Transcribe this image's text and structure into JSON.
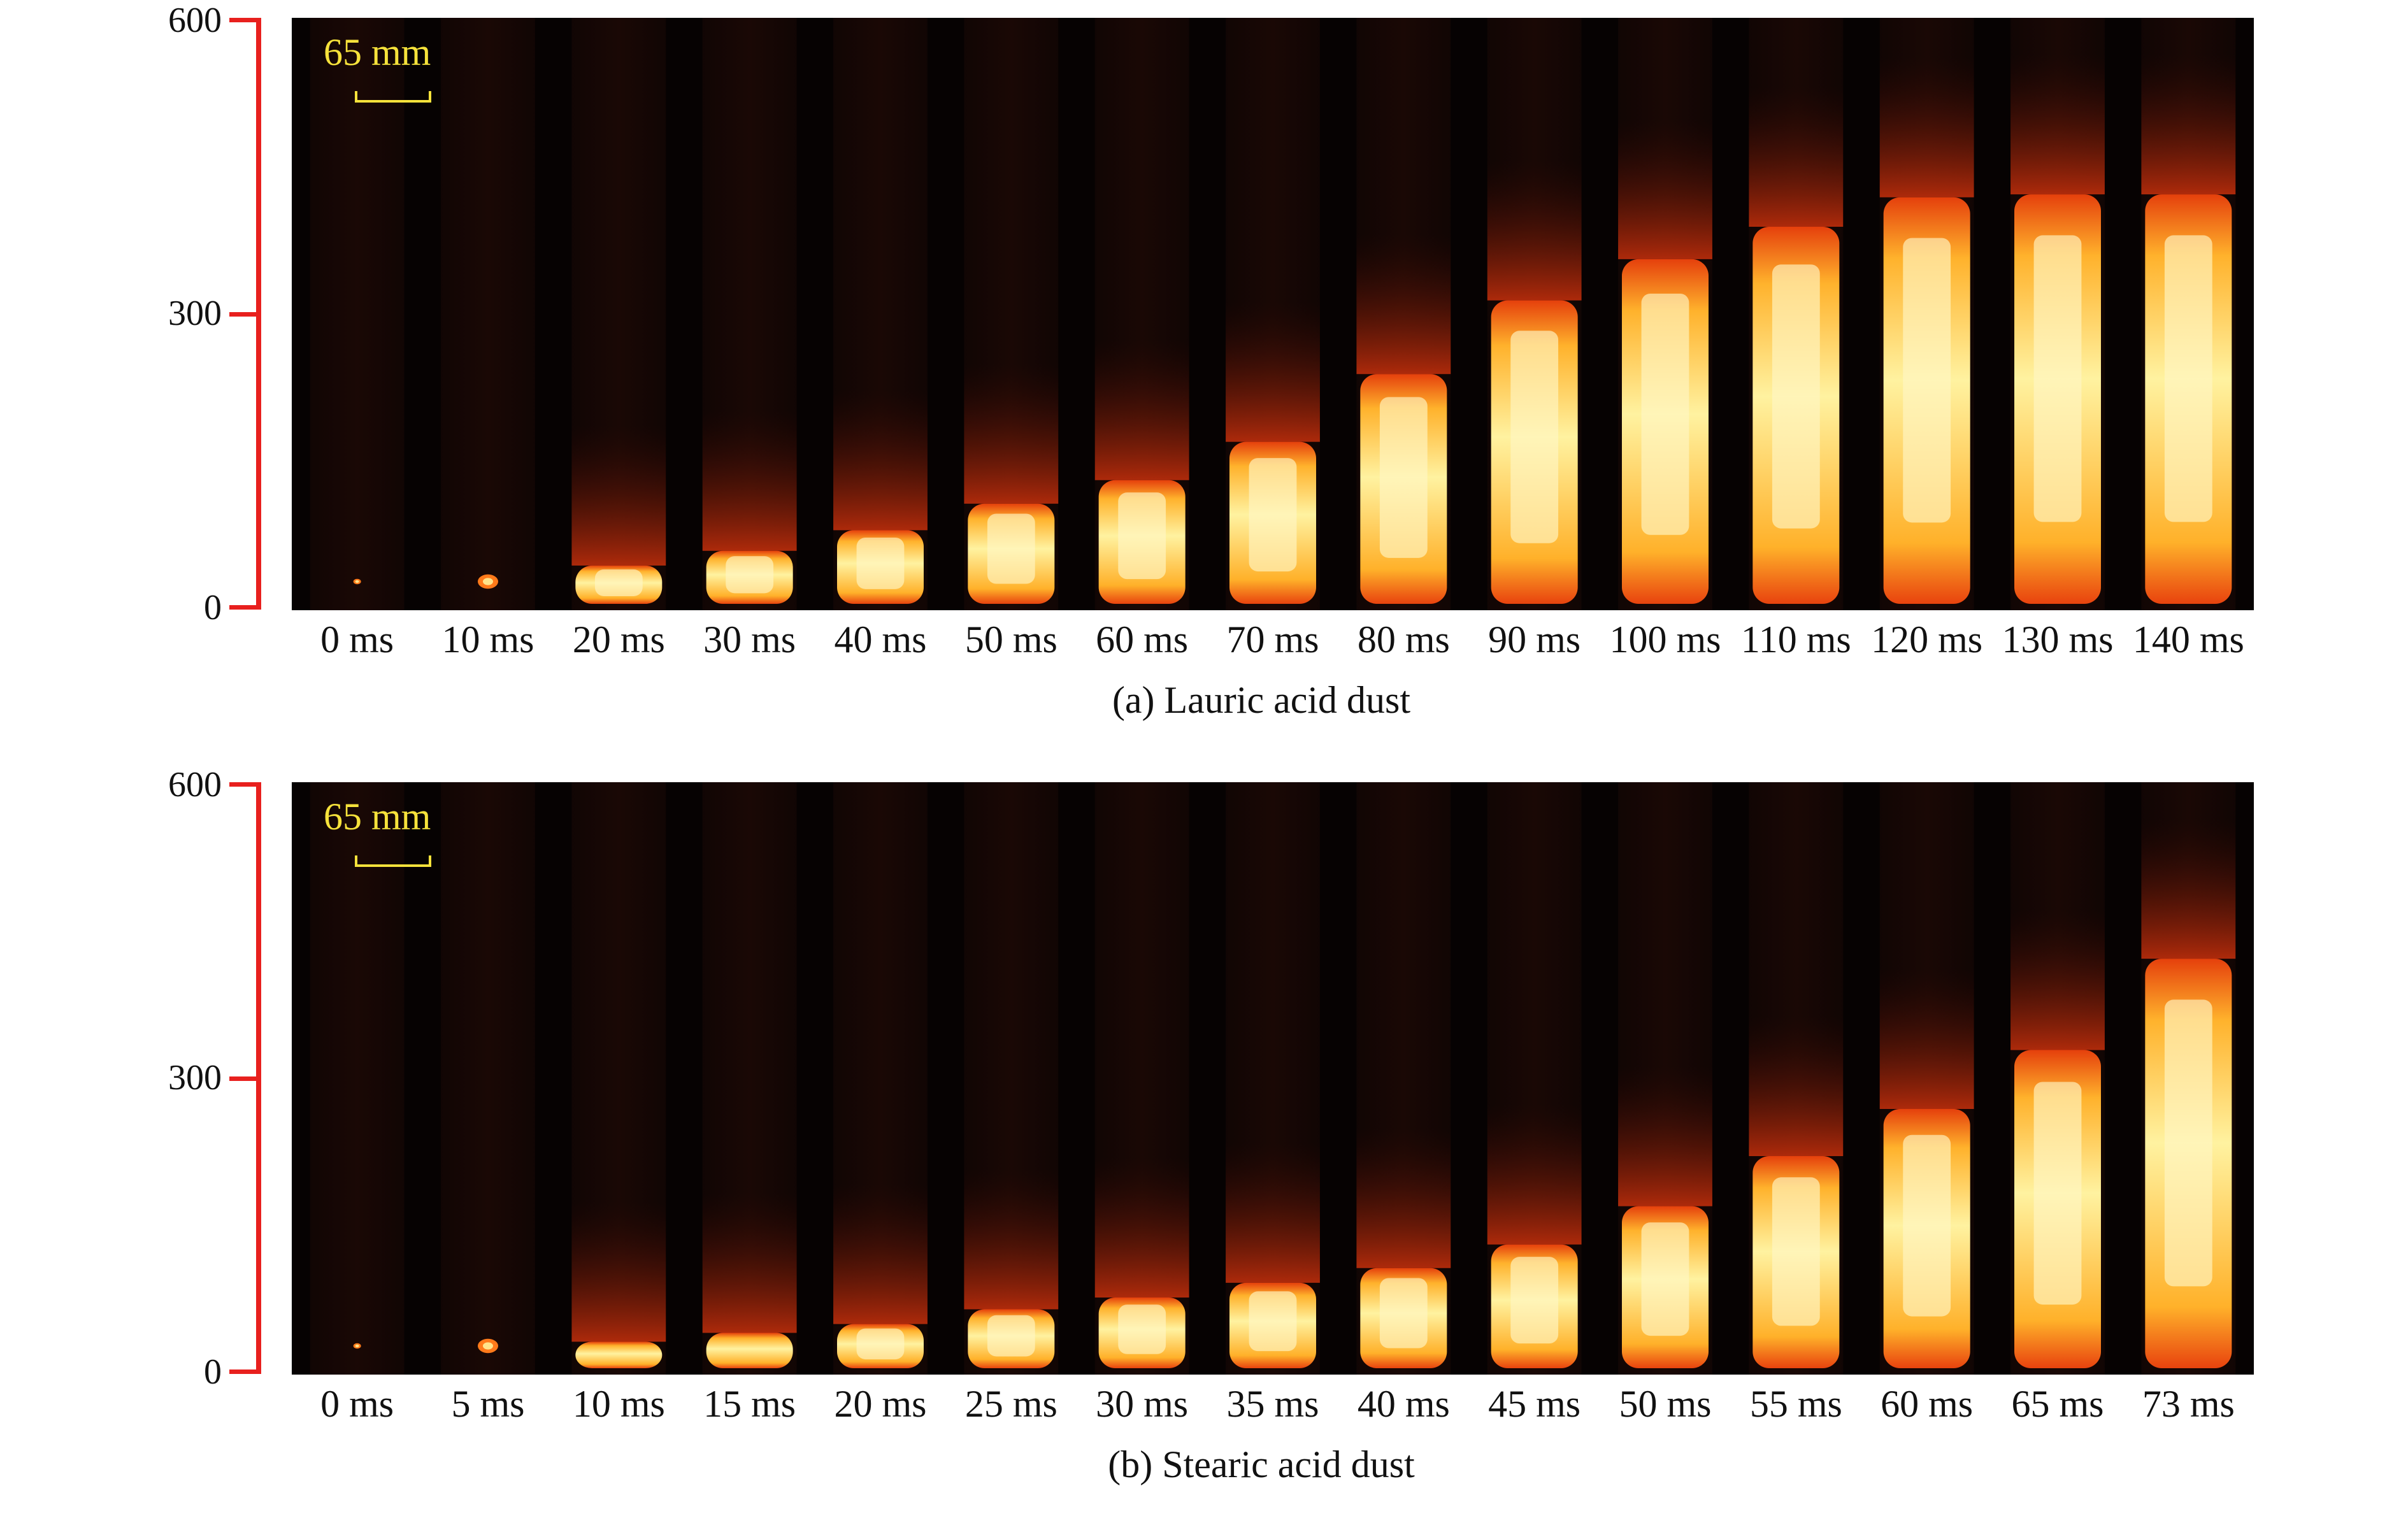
{
  "colors": {
    "axis": "#e8201e",
    "scale_text": "#f6e23b",
    "background": "#ffffff",
    "photo_bg": "#060202"
  },
  "panels": [
    {
      "caption": "(a) Lauric acid dust",
      "scale_label": "65 mm",
      "y_ticks": [
        "600",
        "300",
        "0"
      ],
      "frames": [
        {
          "label": "0 ms",
          "flame_top": 0.05,
          "spark": true
        },
        {
          "label": "10 ms",
          "flame_top": 0.09,
          "spark": true
        },
        {
          "label": "20 ms",
          "flame_top": 0.13
        },
        {
          "label": "30 ms",
          "flame_top": 0.18
        },
        {
          "label": "40 ms",
          "flame_top": 0.25
        },
        {
          "label": "50 ms",
          "flame_top": 0.34
        },
        {
          "label": "60 ms",
          "flame_top": 0.42
        },
        {
          "label": "70 ms",
          "flame_top": 0.55
        },
        {
          "label": "80 ms",
          "flame_top": 0.78
        },
        {
          "label": "90 ms",
          "flame_top": 1.03
        },
        {
          "label": "100 ms",
          "flame_top": 1.17
        },
        {
          "label": "110 ms",
          "flame_top": 1.28
        },
        {
          "label": "120 ms",
          "flame_top": 1.38
        },
        {
          "label": "130 ms",
          "flame_top": 1.39
        },
        {
          "label": "140 ms",
          "flame_top": 1.39
        }
      ]
    },
    {
      "caption": "(b) Stearic acid dust",
      "scale_label": "65 mm",
      "y_ticks": [
        "600",
        "300",
        "0"
      ],
      "frames": [
        {
          "label": "0 ms",
          "flame_top": 0.04,
          "spark": true
        },
        {
          "label": "5 ms",
          "flame_top": 0.07,
          "spark": true
        },
        {
          "label": "10 ms",
          "flame_top": 0.09
        },
        {
          "label": "15 ms",
          "flame_top": 0.12
        },
        {
          "label": "20 ms",
          "flame_top": 0.15
        },
        {
          "label": "25 ms",
          "flame_top": 0.2
        },
        {
          "label": "30 ms",
          "flame_top": 0.24
        },
        {
          "label": "35 ms",
          "flame_top": 0.29
        },
        {
          "label": "40 ms",
          "flame_top": 0.34
        },
        {
          "label": "45 ms",
          "flame_top": 0.42
        },
        {
          "label": "50 ms",
          "flame_top": 0.55
        },
        {
          "label": "55 ms",
          "flame_top": 0.72
        },
        {
          "label": "60 ms",
          "flame_top": 0.88
        },
        {
          "label": "65 ms",
          "flame_top": 1.08
        },
        {
          "label": "73 ms",
          "flame_top": 1.39
        }
      ]
    }
  ]
}
